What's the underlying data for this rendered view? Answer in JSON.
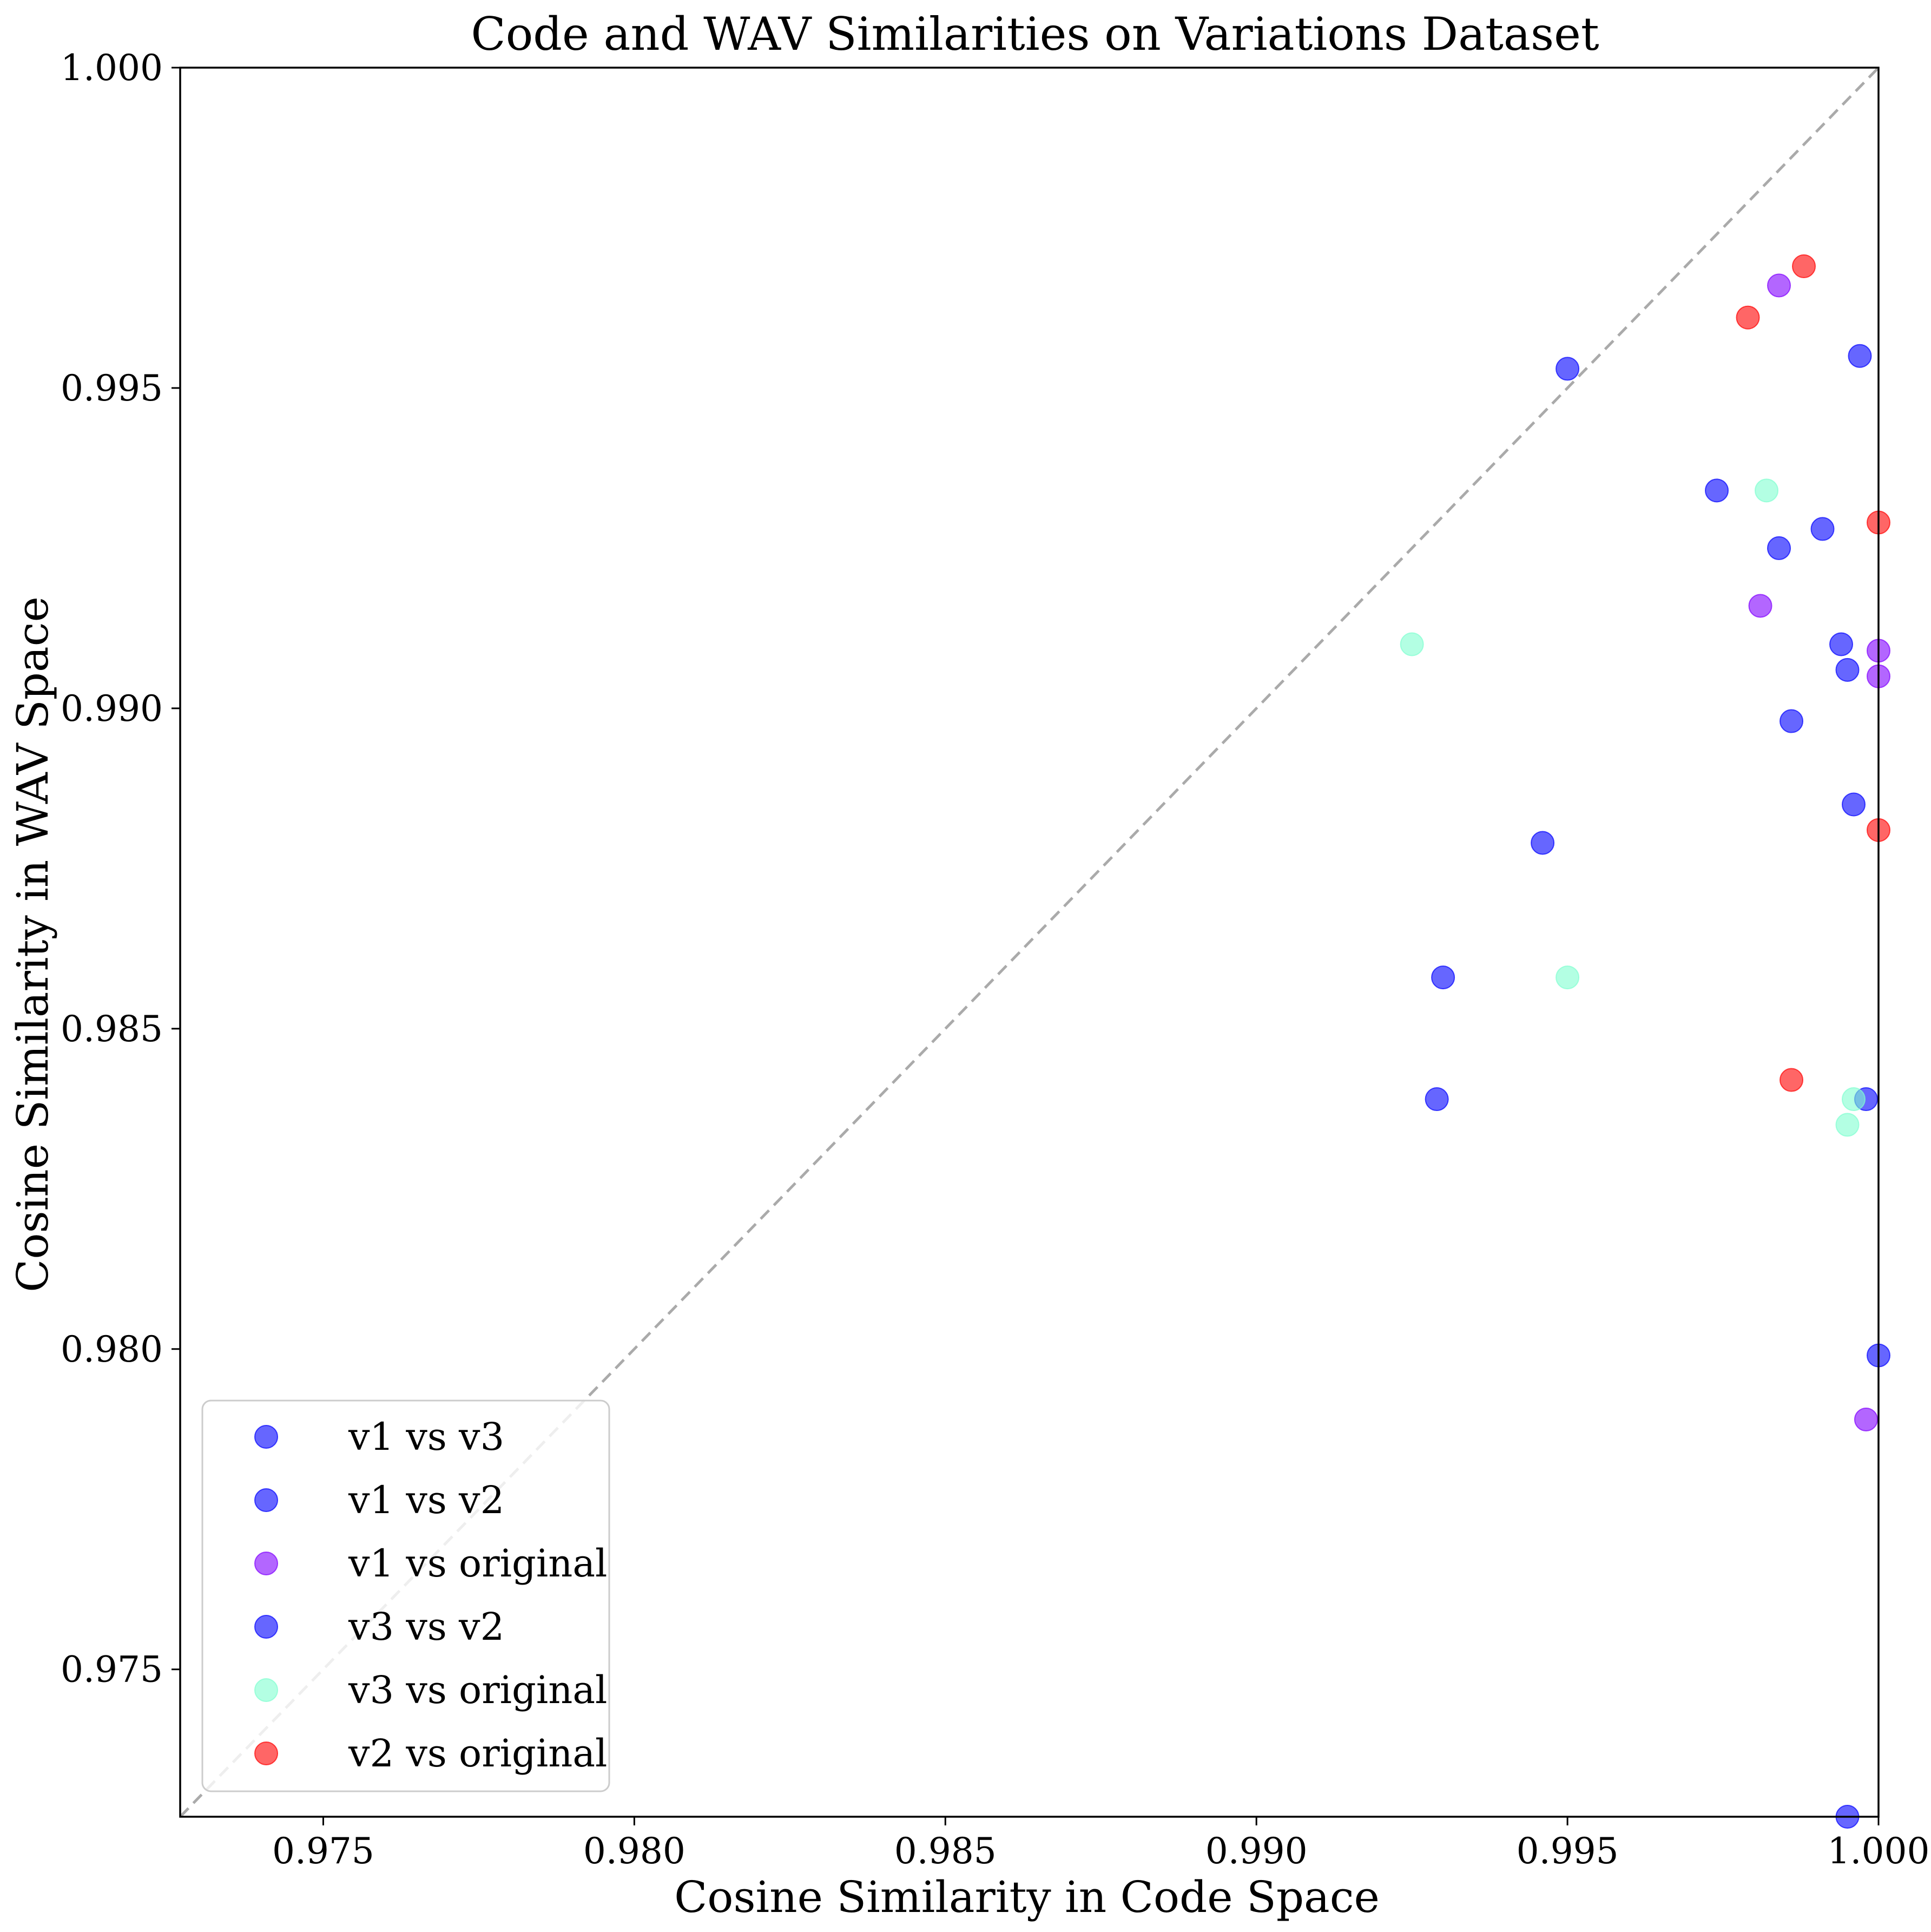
{
  "chart_data": {
    "type": "scatter",
    "title": "Code and WAV Similarities on Variations Dataset",
    "xlabel": "Cosine Similarity in Code Space",
    "ylabel": "Cosine Similarity in WAV Space",
    "xlim": [
      0.9727,
      1.0
    ],
    "ylim": [
      0.9727,
      1.0
    ],
    "xticks": [
      "0.975",
      "0.980",
      "0.985",
      "0.990",
      "0.995",
      "1.000"
    ],
    "yticks": [
      "0.975",
      "0.980",
      "0.985",
      "0.990",
      "0.995",
      "1.000"
    ],
    "reference_line": "y = x",
    "legend_position": "lower-left",
    "grid": false,
    "series": [
      {
        "name": "v1 vs v3",
        "color": "#0000ff",
        "points": [
          [
            0.995,
            0.9953
          ],
          [
            0.9974,
            0.9934
          ],
          [
            0.9984,
            0.9925
          ],
          [
            0.9997,
            0.9955
          ],
          [
            0.9994,
            0.991
          ],
          [
            0.9995,
            0.9906
          ],
          [
            0.9986,
            0.9898
          ],
          [
            0.9946,
            0.9879
          ]
        ]
      },
      {
        "name": "v1 vs v2",
        "color": "#0000ff",
        "points": [
          [
            0.993,
            0.9858
          ],
          [
            0.9929,
            0.9839
          ],
          [
            0.9991,
            0.9928
          ],
          [
            0.9996,
            0.9885
          ],
          [
            0.9998,
            0.9839
          ],
          [
            1.0,
            0.9799
          ]
        ]
      },
      {
        "name": "v1 vs original",
        "color": "#8000ff",
        "points": [
          [
            0.9984,
            0.9966
          ],
          [
            0.9981,
            0.9916
          ],
          [
            1.0,
            0.9909
          ],
          [
            1.0,
            0.9905
          ],
          [
            0.9998,
            0.9789
          ]
        ]
      },
      {
        "name": "v3 vs v2",
        "color": "#0000ff",
        "points": [
          [
            0.9995,
            0.9727
          ]
        ]
      },
      {
        "name": "v3 vs original",
        "color": "#80ffd0",
        "points": [
          [
            0.9925,
            0.991
          ],
          [
            0.9982,
            0.9934
          ],
          [
            0.995,
            0.9858
          ],
          [
            0.9996,
            0.9839
          ],
          [
            0.9995,
            0.9835
          ]
        ]
      },
      {
        "name": "v2 vs original",
        "color": "#ff0000",
        "points": [
          [
            0.9979,
            0.9961
          ],
          [
            0.9988,
            0.9969
          ],
          [
            1.0,
            0.9929
          ],
          [
            1.0,
            0.9881
          ],
          [
            0.9986,
            0.9842
          ]
        ]
      }
    ]
  }
}
